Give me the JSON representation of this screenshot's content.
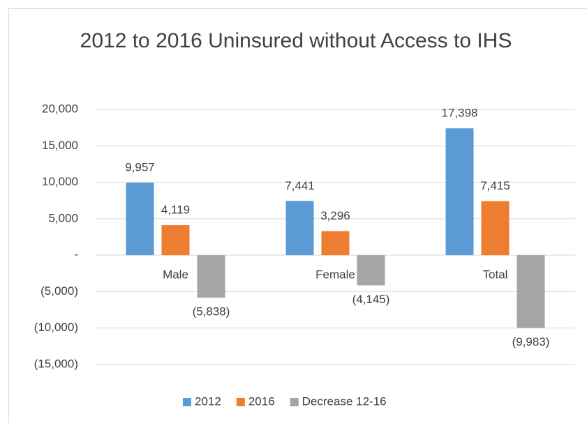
{
  "chart_data": {
    "type": "bar",
    "title": "2012 to 2016 Uninsured without Access to IHS",
    "categories": [
      "Male",
      "Female",
      "Total"
    ],
    "series": [
      {
        "name": "2012",
        "color": "#5b9bd5",
        "values": [
          9957,
          7441,
          17398
        ],
        "value_labels": [
          "9,957",
          "7,441",
          "17,398"
        ]
      },
      {
        "name": "2016",
        "color": "#ed7d31",
        "values": [
          4119,
          3296,
          7415
        ],
        "value_labels": [
          "4,119",
          "3,296",
          "7,415"
        ]
      },
      {
        "name": "Decrease 12-16",
        "color": "#a5a5a5",
        "values": [
          -5838,
          -4145,
          -9983
        ],
        "value_labels": [
          "(5,838)",
          "(4,145)",
          "(9,983)"
        ]
      }
    ],
    "ylim": [
      -15000,
      20000
    ],
    "yticks": [
      {
        "value": -15000,
        "label": "(15,000)"
      },
      {
        "value": -10000,
        "label": "(10,000)"
      },
      {
        "value": -5000,
        "label": "(5,000)"
      },
      {
        "value": 0,
        "label": "-"
      },
      {
        "value": 5000,
        "label": "5,000"
      },
      {
        "value": 10000,
        "label": "10,000"
      },
      {
        "value": 15000,
        "label": "15,000"
      },
      {
        "value": 20000,
        "label": "20,000"
      }
    ],
    "grid": true,
    "legend": "bottom"
  }
}
